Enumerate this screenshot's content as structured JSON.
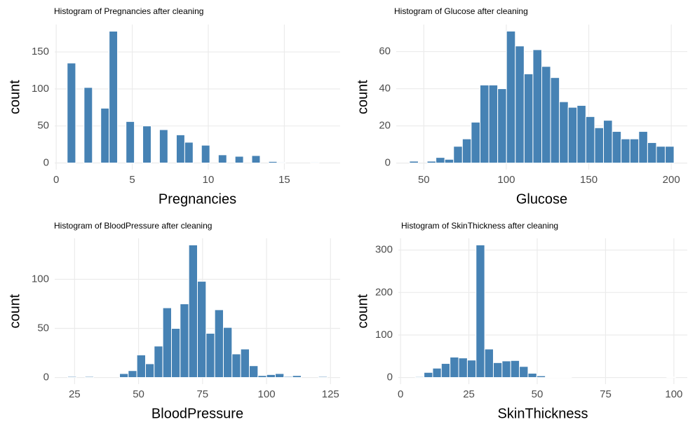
{
  "chart_data": [
    {
      "type": "histogram",
      "title": "Histogram of Pregnancies after cleaning",
      "x_label": "Pregnancies",
      "y_label": "count",
      "color": "#4682b4",
      "grid": true,
      "bins": [
        0.72,
        1.28,
        1.83,
        2.38,
        2.93,
        3.48,
        4.03,
        4.59,
        5.14,
        5.69,
        6.24,
        6.79,
        7.34,
        7.9,
        8.45,
        9.0,
        9.55,
        10.1,
        10.66,
        11.21,
        11.76,
        12.31,
        12.86,
        13.41,
        13.97,
        14.52,
        15.07,
        15.62,
        16.17,
        16.72,
        17.28
      ],
      "values": [
        135,
        0,
        102,
        0,
        74,
        178,
        0,
        56,
        0,
        50,
        0,
        45,
        0,
        38,
        28,
        0,
        24,
        0,
        11,
        0,
        9,
        0,
        10,
        0,
        2,
        1,
        0,
        0,
        0,
        1
      ],
      "xlim": [
        -0.1,
        18.67
      ],
      "xticks": [
        0,
        5,
        10,
        15
      ],
      "ylim": [
        -9,
        187
      ],
      "yticks": [
        0,
        50,
        100,
        150
      ]
    },
    {
      "type": "histogram",
      "title": "Histogram of Glucose after cleaning",
      "x_label": "Glucose",
      "y_label": "count",
      "color": "#4682b4",
      "grid": true,
      "bins": [
        41.33,
        46.67,
        52.02,
        57.36,
        62.71,
        68.05,
        73.4,
        78.74,
        84.09,
        89.43,
        94.78,
        100.12,
        105.47,
        110.81,
        116.16,
        121.5,
        126.84,
        132.19,
        137.53,
        142.88,
        148.22,
        153.57,
        158.91,
        164.26,
        169.6,
        174.95,
        180.29,
        185.64,
        190.98,
        196.33,
        201.67
      ],
      "values": [
        1,
        0,
        1,
        3,
        2,
        9,
        13,
        22,
        42,
        42,
        40,
        71,
        63,
        48,
        61,
        52,
        46,
        33,
        30,
        31,
        25,
        19,
        23,
        17,
        13,
        13,
        17,
        11,
        9,
        9
      ],
      "xlim": [
        33.3,
        209.7
      ],
      "xticks": [
        50,
        100,
        150,
        200
      ],
      "ylim": [
        -3.55,
        74.55
      ],
      "yticks": [
        0,
        20,
        40,
        60
      ]
    },
    {
      "type": "histogram",
      "title": "Histogram of BloodPressure after cleaning",
      "x_label": "BloodPressure",
      "y_label": "count",
      "color": "#4682b4",
      "grid": true,
      "bins": [
        22.31,
        25.69,
        29.07,
        32.45,
        35.83,
        39.21,
        42.59,
        45.96,
        49.34,
        52.72,
        56.1,
        59.48,
        62.86,
        66.24,
        69.62,
        73.0,
        76.38,
        79.76,
        83.14,
        86.52,
        89.9,
        93.28,
        96.66,
        100.03,
        103.41,
        106.79,
        110.17,
        113.55,
        116.93,
        120.31,
        123.69
      ],
      "values": [
        1,
        0,
        1,
        0,
        0,
        0,
        4,
        7,
        23,
        14,
        32,
        71,
        50,
        75,
        135,
        98,
        45,
        69,
        51,
        24,
        29,
        12,
        2,
        3,
        4,
        1,
        2,
        0,
        0,
        1
      ],
      "xlim": [
        17.24,
        128.76
      ],
      "xticks": [
        25,
        50,
        75,
        100,
        125
      ],
      "ylim": [
        -6.75,
        141.75
      ],
      "yticks": [
        0,
        50,
        100
      ]
    },
    {
      "type": "histogram",
      "title": "Histogram of SkinThickness after cleaning",
      "x_label": "SkinThickness",
      "y_label": "count",
      "color": "#4682b4",
      "grid": true,
      "bins": [
        5.41,
        8.59,
        11.76,
        14.93,
        18.1,
        21.27,
        24.45,
        27.62,
        30.79,
        33.96,
        37.14,
        40.31,
        43.48,
        46.65,
        49.83,
        53.0,
        56.17,
        59.34,
        62.52,
        65.69,
        68.86,
        72.03,
        75.21,
        78.38,
        81.55,
        84.72,
        87.9,
        91.07,
        94.24,
        97.41,
        100.59
      ],
      "values": [
        2,
        12,
        22,
        33,
        48,
        46,
        41,
        312,
        67,
        35,
        39,
        40,
        26,
        10,
        4,
        1,
        1,
        1,
        0,
        0,
        0,
        0,
        0,
        0,
        0,
        0,
        0,
        0,
        0,
        1
      ],
      "xlim": [
        -0.8,
        104.9
      ],
      "xticks": [
        0,
        25,
        50,
        75,
        100
      ],
      "ylim": [
        -15.6,
        327.6
      ],
      "yticks": [
        0,
        100,
        200,
        300
      ]
    }
  ]
}
